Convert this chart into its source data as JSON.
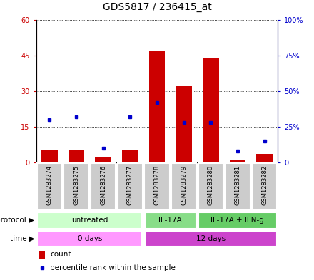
{
  "title": "GDS5817 / 236415_at",
  "samples": [
    "GSM1283274",
    "GSM1283275",
    "GSM1283276",
    "GSM1283277",
    "GSM1283278",
    "GSM1283279",
    "GSM1283280",
    "GSM1283281",
    "GSM1283282"
  ],
  "count_values": [
    5.0,
    5.5,
    2.5,
    5.0,
    47.0,
    32.0,
    44.0,
    1.0,
    3.5
  ],
  "percentile_values": [
    30,
    32,
    10,
    32,
    42,
    28,
    28,
    8,
    15
  ],
  "left_ylim": [
    0,
    60
  ],
  "right_ylim": [
    0,
    100
  ],
  "left_yticks": [
    0,
    15,
    30,
    45,
    60
  ],
  "right_yticks": [
    0,
    25,
    50,
    75,
    100
  ],
  "left_ytick_labels": [
    "0",
    "15",
    "30",
    "45",
    "60"
  ],
  "right_ytick_labels": [
    "0",
    "25%",
    "50%",
    "75%",
    "100%"
  ],
  "bar_color": "#cc0000",
  "dot_color": "#0000cc",
  "sample_box_color": "#cccccc",
  "protocol_groups": [
    {
      "label": "untreated",
      "start": 0,
      "end": 4,
      "color": "#ccffcc"
    },
    {
      "label": "IL-17A",
      "start": 4,
      "end": 6,
      "color": "#88dd88"
    },
    {
      "label": "IL-17A + IFN-g",
      "start": 6,
      "end": 9,
      "color": "#66cc66"
    }
  ],
  "time_groups": [
    {
      "label": "0 days",
      "start": 0,
      "end": 4,
      "color": "#ff99ff"
    },
    {
      "label": "12 days",
      "start": 4,
      "end": 9,
      "color": "#cc44cc"
    }
  ],
  "legend_count_color": "#cc0000",
  "legend_percentile_color": "#0000cc",
  "title_fontsize": 10,
  "tick_fontsize": 7,
  "sample_fontsize": 6,
  "annotation_fontsize": 7.5
}
